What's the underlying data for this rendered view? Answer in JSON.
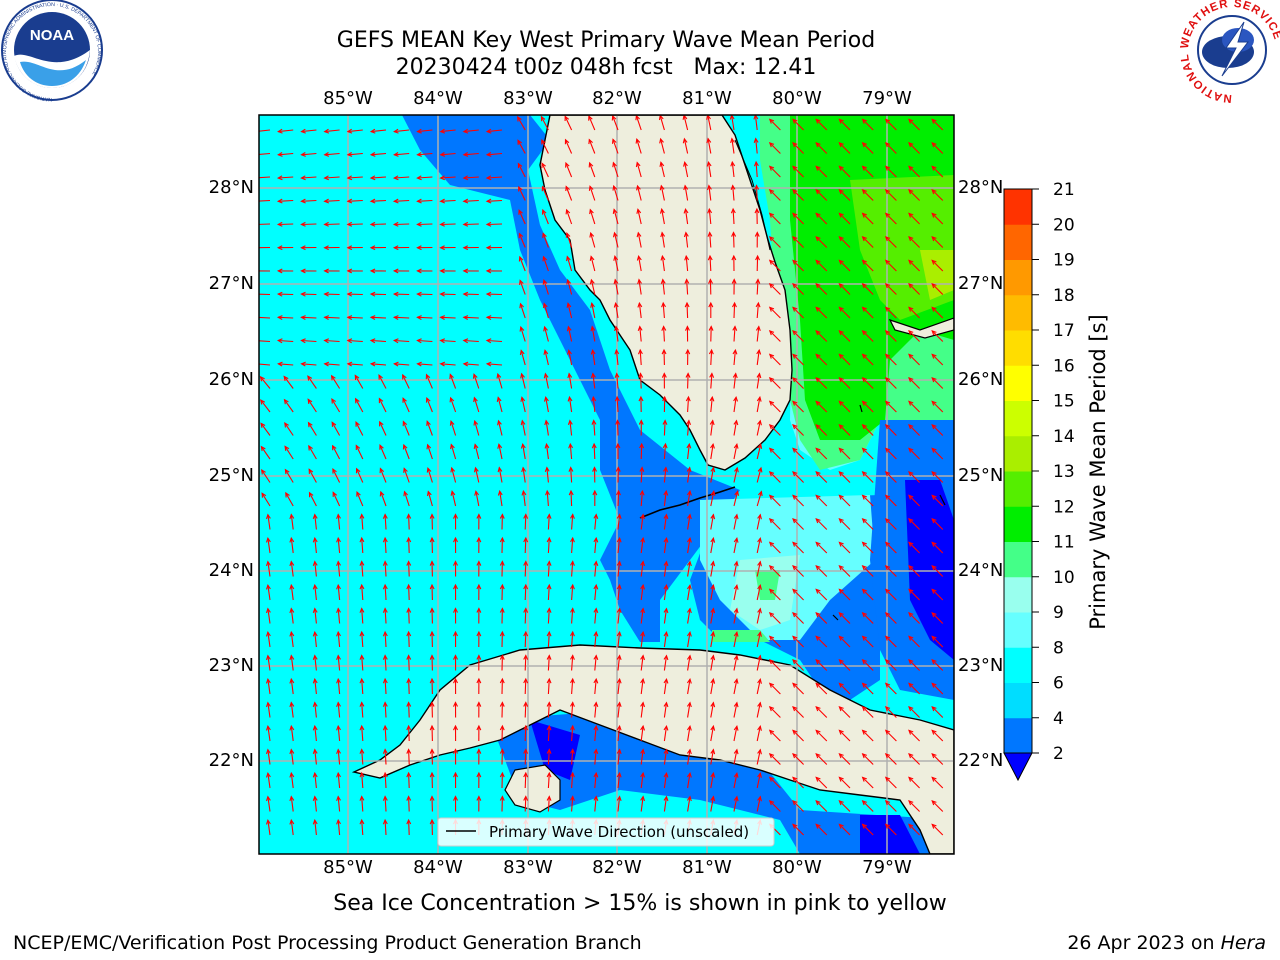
{
  "title": {
    "line1": "GEFS MEAN Key West Primary Wave Mean Period",
    "line2": "20230424 t00z 048h fcst   Max: 12.41"
  },
  "logos": {
    "noaa": {
      "text": "NOAA",
      "ring_text": "NATIONAL OCEANIC AND ATMOSPHERIC ADMINISTRATION · U.S. DEPARTMENT OF COMMERCE"
    },
    "nws": {
      "ring_text": "NATIONAL WEATHER SERVICE"
    }
  },
  "map": {
    "lon_ticks": [
      "85°W",
      "84°W",
      "83°W",
      "82°W",
      "81°W",
      "80°W",
      "79°W"
    ],
    "lat_ticks": [
      "28°N",
      "27°N",
      "26°N",
      "25°N",
      "24°N",
      "23°N",
      "22°N"
    ],
    "lon_range": [
      -86.0,
      -78.25
    ],
    "lat_range": [
      21.1,
      28.75
    ],
    "legend_label": "Primary Wave Direction (unscaled)",
    "ocean_color": "#00ffff",
    "land_color": "#eeeedd",
    "arrow_color": "#ff0000"
  },
  "colorbar": {
    "label": "Primary Wave Mean Period [s]",
    "ticks": [
      "2",
      "4",
      "6",
      "8",
      "9",
      "10",
      "11",
      "12",
      "13",
      "14",
      "15",
      "16",
      "17",
      "18",
      "19",
      "20",
      "21"
    ],
    "colors": [
      "#0077ff",
      "#00ddff",
      "#00ffff",
      "#66ffff",
      "#99ffee",
      "#44ff88",
      "#00ee00",
      "#55ee00",
      "#aaee00",
      "#ccff00",
      "#ffff00",
      "#ffdd00",
      "#ffbb00",
      "#ff9900",
      "#ff6600",
      "#ff3300"
    ],
    "extend_color": "#0000ff"
  },
  "caption": "Sea Ice Concentration > 15% is shown in pink to yellow",
  "footer": {
    "left": "NCEP/EMC/Verification Post Processing Product Generation Branch",
    "date": "26 Apr 2023 on",
    "machine": "Hera"
  }
}
